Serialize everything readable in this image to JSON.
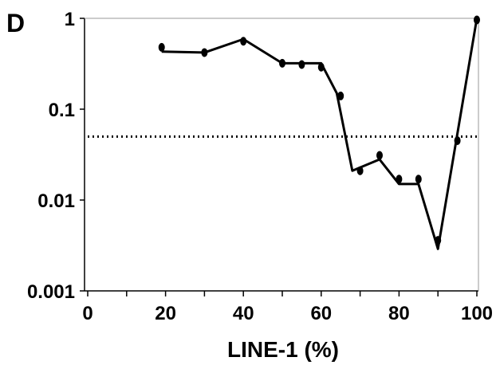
{
  "chart_data": {
    "type": "line",
    "panel_label": "D",
    "x_label": "LINE-1 (%)",
    "xlim": [
      0,
      100
    ],
    "xticks": [
      0,
      20,
      40,
      60,
      80,
      100
    ],
    "xminorticks": [
      10,
      30,
      50,
      70,
      90
    ],
    "ylim": [
      0.001,
      1
    ],
    "yticks": [
      0.001,
      0.01,
      0.1,
      1
    ],
    "log_y": true,
    "series": [
      {
        "style": "markers",
        "color": "#000000",
        "x": [
          19,
          30,
          40,
          50,
          55,
          60,
          65,
          70,
          75,
          80,
          85,
          90,
          95,
          100
        ],
        "values": [
          0.48,
          0.42,
          0.56,
          0.32,
          0.31,
          0.29,
          0.14,
          0.021,
          0.031,
          0.017,
          0.017,
          0.0036,
          0.045,
          0.96
        ]
      },
      {
        "style": "line",
        "color": "#000000",
        "x": [
          19,
          30,
          40,
          50,
          55,
          60,
          64,
          68,
          75,
          80,
          85,
          90,
          100
        ],
        "values": [
          0.43,
          0.42,
          0.59,
          0.32,
          0.32,
          0.32,
          0.15,
          0.021,
          0.028,
          0.015,
          0.015,
          0.0029,
          1.0
        ]
      },
      {
        "style": "dotted",
        "color": "#000000",
        "x": [
          0,
          100
        ],
        "values": [
          0.05,
          0.05
        ]
      }
    ]
  }
}
